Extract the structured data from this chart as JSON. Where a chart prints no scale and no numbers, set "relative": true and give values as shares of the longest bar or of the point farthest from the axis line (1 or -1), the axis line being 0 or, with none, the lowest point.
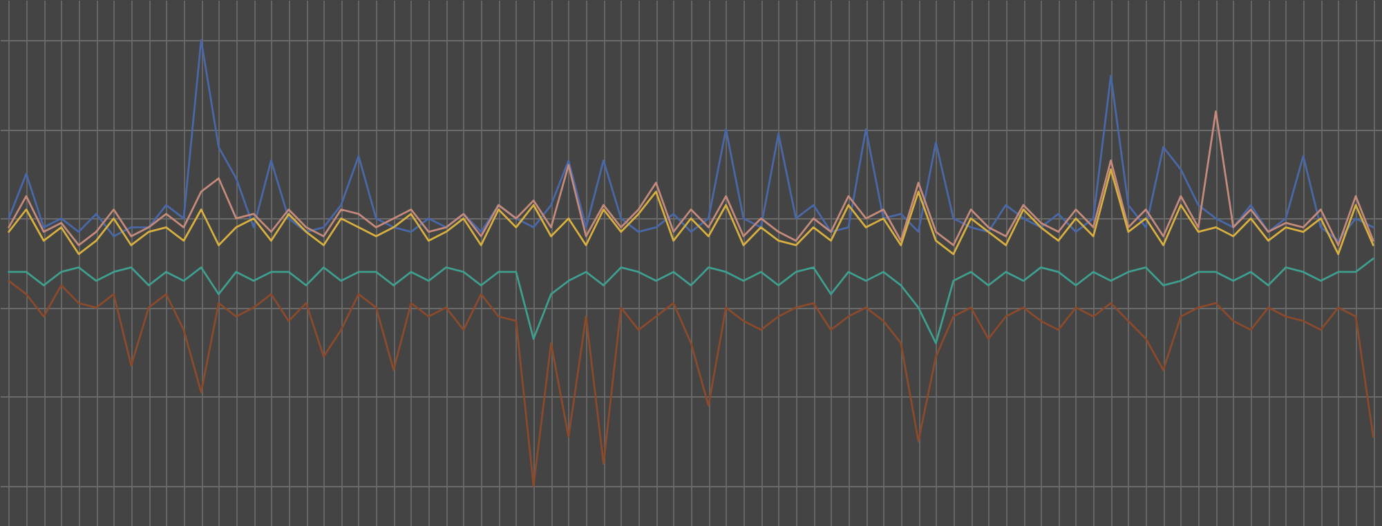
{
  "chart_data": {
    "type": "line",
    "relative": true,
    "grid": true,
    "legend": false,
    "categories": [
      null,
      null,
      null,
      null,
      null,
      null,
      null,
      null,
      null,
      null,
      null,
      null,
      null,
      null,
      null,
      null,
      null,
      null,
      null,
      null,
      null,
      null,
      null,
      null,
      null,
      null,
      null,
      null,
      null,
      null,
      null,
      null,
      null,
      null,
      null,
      null,
      null,
      null,
      null,
      null,
      null,
      null,
      null,
      null,
      null,
      null,
      null,
      null,
      null,
      null,
      null,
      null,
      null,
      null,
      null,
      null,
      null,
      null,
      null,
      null,
      null,
      null,
      null,
      null,
      null,
      null,
      null,
      null,
      null,
      null,
      null,
      null,
      null,
      null,
      null,
      null,
      null,
      null,
      null
    ],
    "series": [
      {
        "color": "#4a68a8",
        "values": [
          0.6,
          0.7,
          0.58,
          0.6,
          0.57,
          0.61,
          0.56,
          0.58,
          0.58,
          0.63,
          0.6,
          1.0,
          0.76,
          0.69,
          0.58,
          0.73,
          0.6,
          0.57,
          0.58,
          0.63,
          0.74,
          0.6,
          0.58,
          0.57,
          0.6,
          0.58,
          0.61,
          0.57,
          0.63,
          0.6,
          0.58,
          0.63,
          0.73,
          0.58,
          0.73,
          0.6,
          0.57,
          0.58,
          0.61,
          0.57,
          0.6,
          0.8,
          0.6,
          0.58,
          0.79,
          0.6,
          0.63,
          0.57,
          0.58,
          0.8,
          0.6,
          0.61,
          0.57,
          0.77,
          0.6,
          0.58,
          0.57,
          0.63,
          0.6,
          0.58,
          0.61,
          0.57,
          0.6,
          0.92,
          0.63,
          0.58,
          0.76,
          0.71,
          0.63,
          0.6,
          0.58,
          0.63,
          0.57,
          0.6,
          0.74,
          0.58,
          0.55,
          0.6,
          0.58
        ]
      },
      {
        "color": "#c48a7c",
        "values": [
          0.58,
          0.65,
          0.57,
          0.59,
          0.54,
          0.57,
          0.62,
          0.56,
          0.58,
          0.61,
          0.58,
          0.66,
          0.69,
          0.6,
          0.61,
          0.57,
          0.62,
          0.58,
          0.56,
          0.62,
          0.61,
          0.58,
          0.6,
          0.62,
          0.57,
          0.58,
          0.61,
          0.56,
          0.63,
          0.6,
          0.64,
          0.58,
          0.72,
          0.56,
          0.63,
          0.58,
          0.62,
          0.68,
          0.57,
          0.62,
          0.58,
          0.65,
          0.56,
          0.6,
          0.57,
          0.55,
          0.6,
          0.57,
          0.65,
          0.6,
          0.62,
          0.55,
          0.68,
          0.57,
          0.54,
          0.62,
          0.58,
          0.56,
          0.63,
          0.59,
          0.57,
          0.62,
          0.58,
          0.73,
          0.58,
          0.62,
          0.56,
          0.65,
          0.58,
          0.84,
          0.58,
          0.62,
          0.57,
          0.59,
          0.58,
          0.62,
          0.54,
          0.65,
          0.55
        ]
      },
      {
        "color": "#8c4a2c",
        "values": [
          0.46,
          0.43,
          0.38,
          0.45,
          0.41,
          0.4,
          0.43,
          0.27,
          0.4,
          0.43,
          0.35,
          0.21,
          0.41,
          0.38,
          0.4,
          0.43,
          0.37,
          0.41,
          0.29,
          0.35,
          0.43,
          0.4,
          0.26,
          0.41,
          0.38,
          0.4,
          0.35,
          0.43,
          0.38,
          0.37,
          0,
          0.32,
          0.11,
          0.38,
          0.05,
          0.4,
          0.35,
          0.38,
          0.41,
          0.32,
          0.18,
          0.4,
          0.37,
          0.35,
          0.38,
          0.4,
          0.41,
          0.35,
          0.38,
          0.4,
          0.37,
          0.32,
          0.1,
          0.29,
          0.38,
          0.4,
          0.33,
          0.38,
          0.4,
          0.37,
          0.35,
          0.4,
          0.38,
          0.41,
          0.37,
          0.33,
          0.26,
          0.38,
          0.4,
          0.41,
          0.37,
          0.35,
          0.4,
          0.38,
          0.37,
          0.35,
          0.4,
          0.38,
          0.11
        ]
      },
      {
        "color": "#3f9e8e",
        "values": [
          0.48,
          0.48,
          0.45,
          0.48,
          0.49,
          0.46,
          0.48,
          0.49,
          0.45,
          0.48,
          0.46,
          0.49,
          0.43,
          0.48,
          0.46,
          0.48,
          0.48,
          0.45,
          0.49,
          0.46,
          0.48,
          0.48,
          0.45,
          0.48,
          0.46,
          0.49,
          0.48,
          0.45,
          0.48,
          0.48,
          0.33,
          0.43,
          0.46,
          0.48,
          0.45,
          0.49,
          0.48,
          0.46,
          0.48,
          0.45,
          0.49,
          0.48,
          0.46,
          0.48,
          0.45,
          0.48,
          0.49,
          0.43,
          0.48,
          0.46,
          0.48,
          0.45,
          0.4,
          0.32,
          0.46,
          0.48,
          0.45,
          0.48,
          0.46,
          0.49,
          0.48,
          0.45,
          0.48,
          0.46,
          0.48,
          0.49,
          0.45,
          0.46,
          0.48,
          0.48,
          0.46,
          0.48,
          0.45,
          0.49,
          0.48,
          0.46,
          0.48,
          0.48,
          0.51
        ]
      },
      {
        "color": "#d8b040",
        "values": [
          0.57,
          0.62,
          0.55,
          0.58,
          0.52,
          0.55,
          0.6,
          0.54,
          0.57,
          0.58,
          0.55,
          0.62,
          0.54,
          0.58,
          0.6,
          0.55,
          0.61,
          0.57,
          0.54,
          0.6,
          0.58,
          0.56,
          0.58,
          0.61,
          0.55,
          0.57,
          0.6,
          0.54,
          0.62,
          0.58,
          0.63,
          0.56,
          0.6,
          0.54,
          0.62,
          0.57,
          0.61,
          0.66,
          0.55,
          0.6,
          0.56,
          0.63,
          0.54,
          0.58,
          0.55,
          0.54,
          0.58,
          0.55,
          0.63,
          0.58,
          0.6,
          0.54,
          0.66,
          0.55,
          0.52,
          0.6,
          0.57,
          0.54,
          0.62,
          0.58,
          0.55,
          0.6,
          0.56,
          0.71,
          0.57,
          0.6,
          0.54,
          0.63,
          0.57,
          0.58,
          0.56,
          0.6,
          0.55,
          0.58,
          0.57,
          0.6,
          0.52,
          0.63,
          0.54
        ]
      }
    ]
  }
}
